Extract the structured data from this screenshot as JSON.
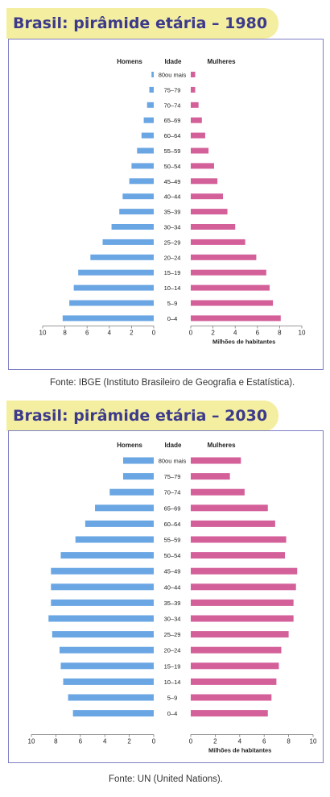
{
  "charts": [
    {
      "title": "Brasil: pirâmide etária – 1980",
      "source": "Fonte: IBGE (Instituto Brasileiro de Geografia e Estatística).",
      "label_men": "Homens",
      "label_age": "Idade",
      "label_women": "Mulheres",
      "axis_unit": "Milhões de habitantes",
      "colors": {
        "men": "#6aa6e3",
        "women": "#d4609a",
        "frame": "#7d7fc4",
        "title_bg": "#f4efa0",
        "title_text": "#3d3a8c"
      }
    },
    {
      "title": "Brasil: pirâmide etária – 2030",
      "source": "Fonte: UN (United Nations).",
      "label_men": "Homens",
      "label_age": "Idade",
      "label_women": "Mulheres",
      "axis_unit": "Milhões de habitantes",
      "colors": {
        "men": "#6aa6e3",
        "women": "#d4609a",
        "frame": "#7d7fc4",
        "title_bg": "#f4efa0",
        "title_text": "#3d3a8c"
      }
    }
  ],
  "chart_data": [
    {
      "type": "bar",
      "orientation": "horizontal-population-pyramid",
      "categories": [
        "0-4",
        "5-9",
        "10-14",
        "15-19",
        "20-24",
        "25-29",
        "30-34",
        "35-39",
        "40-44",
        "45-49",
        "50-54",
        "55-59",
        "60-64",
        "65-69",
        "70-74",
        "75-79",
        "80 ou mais"
      ],
      "series": [
        {
          "name": "Homens",
          "values": [
            8.2,
            7.6,
            7.2,
            6.8,
            5.7,
            4.6,
            3.8,
            3.1,
            2.8,
            2.2,
            2.0,
            1.5,
            1.1,
            0.9,
            0.6,
            0.4,
            0.2
          ]
        },
        {
          "name": "Mulheres",
          "values": [
            8.1,
            7.4,
            7.1,
            6.8,
            5.9,
            4.9,
            4.0,
            3.3,
            2.9,
            2.4,
            2.1,
            1.6,
            1.3,
            1.0,
            0.7,
            0.4,
            0.4
          ]
        }
      ],
      "xticks": [
        "10",
        "8",
        "6",
        "4",
        "2",
        "0",
        "0",
        "2",
        "4",
        "6",
        "8",
        "10"
      ],
      "xlim": [
        0,
        10
      ],
      "xlabel": "Milhões de habitantes"
    },
    {
      "type": "bar",
      "orientation": "horizontal-population-pyramid",
      "categories": [
        "0-4",
        "5-9",
        "10-14",
        "15-19",
        "20-24",
        "25-29",
        "30-34",
        "35-39",
        "40-44",
        "45-49",
        "50-54",
        "55-59",
        "60-64",
        "65-69",
        "70-74",
        "75-79",
        "80 ou mais"
      ],
      "series": [
        {
          "name": "Homens",
          "values": [
            6.6,
            7.0,
            7.4,
            7.6,
            7.7,
            8.3,
            8.6,
            8.4,
            8.4,
            8.4,
            7.6,
            6.4,
            5.6,
            4.8,
            3.6,
            2.5,
            2.5
          ]
        },
        {
          "name": "Mulheres",
          "values": [
            6.3,
            6.6,
            7.0,
            7.2,
            7.4,
            8.0,
            8.4,
            8.4,
            8.6,
            8.7,
            7.7,
            7.8,
            6.9,
            6.3,
            4.4,
            3.2,
            4.1
          ]
        }
      ],
      "xticks": [
        "10",
        "8",
        "6",
        "4",
        "2",
        "0",
        "0",
        "2",
        "4",
        "6",
        "8",
        "10"
      ],
      "xlim": [
        0,
        10
      ],
      "xlabel": "Milhões de habitantes"
    }
  ]
}
